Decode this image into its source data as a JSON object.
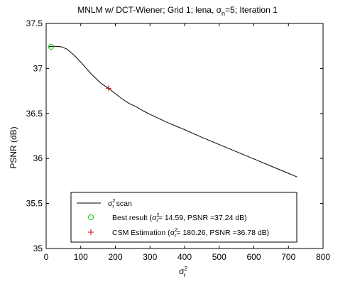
{
  "chart_data": {
    "type": "line",
    "title": {
      "prefix": "MNLM w/  DCT-Wiener; Grid 1; lena, σ",
      "sub": "n",
      "suffix": "=5; Iteration 1"
    },
    "xlabel": {
      "base": "σ",
      "sup": "2",
      "sub": "r"
    },
    "ylabel": "PSNR (dB)",
    "xlim": [
      0,
      800
    ],
    "ylim": [
      35,
      37.5
    ],
    "xticks": [
      0,
      100,
      200,
      300,
      400,
      500,
      600,
      700,
      800
    ],
    "yticks": [
      35,
      35.5,
      36,
      36.5,
      37,
      37.5
    ],
    "ytick_labels": [
      "35",
      "35.5",
      "36",
      "36.5",
      "37",
      "37.5"
    ],
    "grid": false,
    "legend_position": "bottom-center",
    "series": [
      {
        "name_parts": {
          "base": "σ",
          "sup": "2",
          "sub": "r",
          "after": " scan"
        },
        "color": "#000000",
        "x": [
          5,
          15,
          30,
          45,
          60,
          80,
          100,
          130,
          160,
          180,
          200,
          220,
          240,
          260,
          280,
          300,
          350,
          400,
          450,
          500,
          550,
          600,
          650,
          700,
          725
        ],
        "y": [
          37.24,
          37.245,
          37.245,
          37.24,
          37.215,
          37.15,
          37.07,
          36.94,
          36.83,
          36.78,
          36.72,
          36.66,
          36.61,
          36.575,
          36.53,
          36.49,
          36.4,
          36.32,
          36.235,
          36.155,
          36.075,
          35.995,
          35.915,
          35.835,
          35.795
        ]
      }
    ],
    "markers": [
      {
        "type": "best",
        "shape": "circle",
        "color": "#00cc00",
        "x": 14.59,
        "y": 37.24,
        "label_parts": {
          "pre": "Best result (",
          "base": "σ",
          "sup": "2",
          "sub": "r",
          "post": "= 14.59, PSNR =37.24 dB)"
        }
      },
      {
        "type": "csm",
        "shape": "plus",
        "color": "#cc0000",
        "x": 180.26,
        "y": 36.78,
        "label_parts": {
          "pre": "CSM Estimation (",
          "base": "σ",
          "sup": "2",
          "sub": "r",
          "post": "= 180.26, PSNR =36.78 dB)"
        }
      }
    ]
  }
}
